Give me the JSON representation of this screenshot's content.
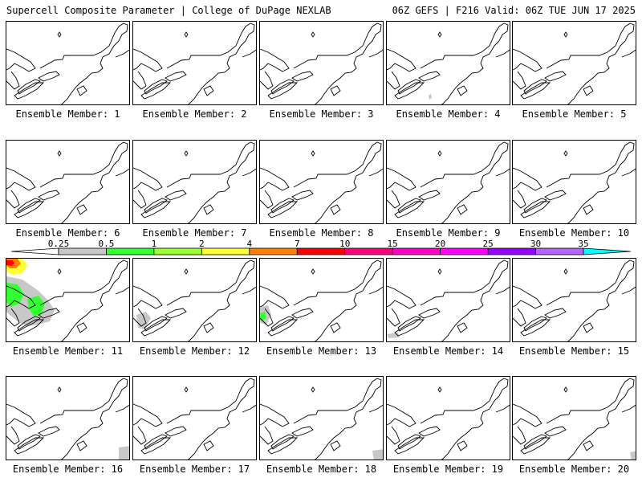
{
  "header": {
    "left_title": "Supercell Composite Parameter | College of DuPage NEXLAB",
    "right_title": "06Z GEFS | F216 Valid: 06Z TUE JUN 17 2025"
  },
  "panels": [
    {
      "label": "Ensemble Member: 1"
    },
    {
      "label": "Ensemble Member: 2"
    },
    {
      "label": "Ensemble Member: 3"
    },
    {
      "label": "Ensemble Member: 4"
    },
    {
      "label": "Ensemble Member: 5"
    },
    {
      "label": "Ensemble Member: 6"
    },
    {
      "label": "Ensemble Member: 7"
    },
    {
      "label": "Ensemble Member: 8"
    },
    {
      "label": "Ensemble Member: 9"
    },
    {
      "label": "Ensemble Member: 10"
    },
    {
      "label": "Ensemble Member: 11"
    },
    {
      "label": "Ensemble Member: 12"
    },
    {
      "label": "Ensemble Member: 13"
    },
    {
      "label": "Ensemble Member: 14"
    },
    {
      "label": "Ensemble Member: 15"
    },
    {
      "label": "Ensemble Member: 16"
    },
    {
      "label": "Ensemble Member: 17"
    },
    {
      "label": "Ensemble Member: 18"
    },
    {
      "label": "Ensemble Member: 19"
    },
    {
      "label": "Ensemble Member: 20"
    }
  ],
  "colorbar": {
    "ticks": [
      "0.25",
      "0.5",
      "1",
      "2",
      "4",
      "7",
      "10",
      "15",
      "20",
      "25",
      "30",
      "35"
    ],
    "colors": [
      "#c8c8c8",
      "#33ff33",
      "#99ff33",
      "#ffff33",
      "#ff8000",
      "#ff0000",
      "#ff0080",
      "#ff00c8",
      "#ff00ff",
      "#9900ff",
      "#b266ff",
      "#00ffff"
    ]
  }
}
